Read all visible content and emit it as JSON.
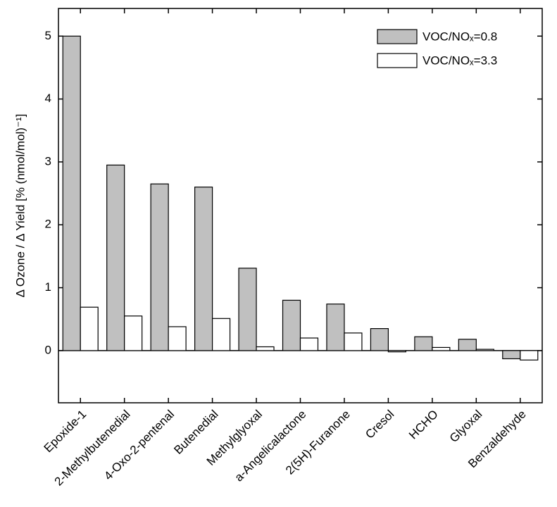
{
  "chart_data": {
    "type": "bar",
    "y_label": "Δ Ozone / Δ Yield [% (nmol/mol)⁻¹]",
    "categories": [
      "Epoxide-1",
      "2-Methylbutenedial",
      "4-Oxo-2-pentenal",
      "Butenedial",
      "Methylglyoxal",
      "a-Angelicalactone",
      "2(5H)-Furanone",
      "Cresol",
      "HCHO",
      "Glyoxal",
      "Benzaldehyde"
    ],
    "series": [
      {
        "name": "VOC/NOₓ=0.8",
        "color": "#c0c0c0",
        "values": [
          5.0,
          2.95,
          2.65,
          2.6,
          1.31,
          0.8,
          0.74,
          0.35,
          0.22,
          0.18,
          -0.13
        ]
      },
      {
        "name": "VOC/NOₓ=3.3",
        "color": "#ffffff",
        "values": [
          0.69,
          0.55,
          0.38,
          0.51,
          0.06,
          0.2,
          0.28,
          -0.02,
          0.05,
          0.02,
          -0.15
        ]
      }
    ],
    "ylim": [
      -0.83,
      5.44
    ],
    "yticks": [
      0,
      1,
      2,
      3,
      4,
      5
    ],
    "legend": "upper right"
  }
}
